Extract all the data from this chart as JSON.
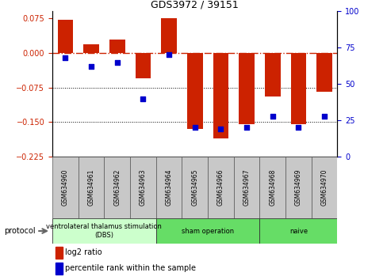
{
  "title": "GDS3972 / 39151",
  "samples": [
    "GSM634960",
    "GSM634961",
    "GSM634962",
    "GSM634963",
    "GSM634964",
    "GSM634965",
    "GSM634966",
    "GSM634967",
    "GSM634968",
    "GSM634969",
    "GSM634970"
  ],
  "log2_ratio": [
    0.072,
    0.018,
    0.028,
    -0.055,
    0.075,
    -0.165,
    -0.185,
    -0.155,
    -0.095,
    -0.155,
    -0.085
  ],
  "percentile_rank": [
    68,
    62,
    65,
    40,
    70,
    20,
    19,
    20,
    28,
    20,
    28
  ],
  "bar_color": "#cc2200",
  "dot_color": "#0000cc",
  "ylim_left": [
    -0.225,
    0.09
  ],
  "ylim_right": [
    0,
    100
  ],
  "yticks_left": [
    0.075,
    0,
    -0.075,
    -0.15,
    -0.225
  ],
  "yticks_right": [
    100,
    75,
    50,
    25,
    0
  ],
  "dotted_lines": [
    -0.075,
    -0.15
  ],
  "group_ranges": [
    [
      0,
      3
    ],
    [
      4,
      7
    ],
    [
      8,
      10
    ]
  ],
  "group_colors": [
    "#ccffcc",
    "#66dd66",
    "#66dd66"
  ],
  "group_labels": [
    "ventrolateral thalamus stimulation\n(DBS)",
    "sham operation",
    "naive"
  ],
  "legend_labels": [
    "log2 ratio",
    "percentile rank within the sample"
  ],
  "legend_colors": [
    "#cc2200",
    "#0000cc"
  ],
  "protocol_label": "protocol",
  "bg_color": "#ffffff",
  "left_tick_color": "#cc2200",
  "right_tick_color": "#0000cc",
  "sample_box_color": "#c8c8c8"
}
